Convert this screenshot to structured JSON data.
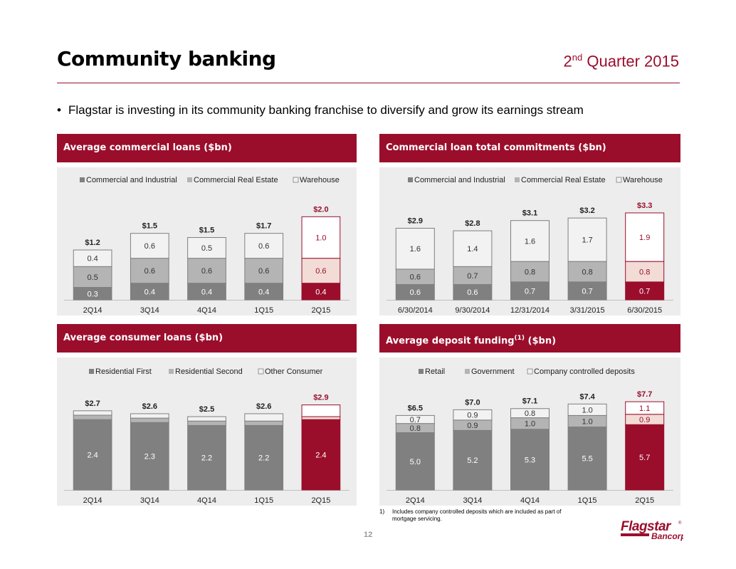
{
  "page": {
    "title": "Community banking",
    "quarter": {
      "ordinal": "2",
      "suffix": "nd",
      "rest": " Quarter 2015"
    },
    "bullet": "Flagstar is investing in its community banking franchise to diversify and grow its earnings stream",
    "page_number": "12",
    "footnote_number": "1)",
    "footnote_text": "Includes company controlled deposits which are included as part of mortgage servicing.",
    "logo": {
      "name": "Flagstar",
      "registered": "®",
      "sub": "Bancorp"
    }
  },
  "colors": {
    "brand": "#9a0e2c",
    "dark_gray": "#808080",
    "mid_gray": "#b4b4b4",
    "light_fill": "#f2f2f2",
    "highlight_mid": "#f2dcd5",
    "highlight_light": "#ffffff",
    "panel_bg": "#ededed"
  },
  "chart_data": [
    {
      "id": "commercial-loans",
      "type": "bar",
      "stacked": true,
      "title": "Average commercial loans ($bn)",
      "categories": [
        "2Q14",
        "3Q14",
        "4Q14",
        "1Q15",
        "2Q15"
      ],
      "series": [
        {
          "name": "Commercial and Industrial",
          "values": [
            0.3,
            0.4,
            0.4,
            0.4,
            0.4
          ]
        },
        {
          "name": "Commercial Real Estate",
          "values": [
            0.5,
            0.6,
            0.6,
            0.6,
            0.6
          ]
        },
        {
          "name": "Warehouse",
          "values": [
            0.4,
            0.6,
            0.5,
            0.6,
            1.0
          ]
        }
      ],
      "totals": [
        "$1.2",
        "$1.5",
        "$1.5",
        "$1.7",
        "$2.0"
      ],
      "highlight_index": 4,
      "show_segment_labels": [
        true,
        true,
        true
      ],
      "ylim": [
        0,
        2.4
      ],
      "legend": "top"
    },
    {
      "id": "loan-commitments",
      "type": "bar",
      "stacked": true,
      "title": "Commercial loan total commitments ($bn)",
      "categories": [
        "6/30/2014",
        "9/30/2014",
        "12/31/2014",
        "3/31/2015",
        "6/30/2015"
      ],
      "series": [
        {
          "name": "Commercial and Industrial",
          "values": [
            0.6,
            0.6,
            0.7,
            0.7,
            0.7
          ]
        },
        {
          "name": "Commercial Real Estate",
          "values": [
            0.6,
            0.7,
            0.8,
            0.8,
            0.8
          ]
        },
        {
          "name": "Warehouse",
          "values": [
            1.6,
            1.4,
            1.6,
            1.7,
            1.9
          ]
        }
      ],
      "totals": [
        "$2.9",
        "$2.8",
        "$3.1",
        "$3.2",
        "$3.3"
      ],
      "highlight_index": 4,
      "show_segment_labels": [
        true,
        true,
        true
      ],
      "ylim": [
        0,
        3.9
      ],
      "legend": "top"
    },
    {
      "id": "consumer-loans",
      "type": "bar",
      "stacked": true,
      "title": "Average consumer loans ($bn)",
      "categories": [
        "2Q14",
        "3Q14",
        "4Q14",
        "1Q15",
        "2Q15"
      ],
      "series": [
        {
          "name": "Residential First",
          "values": [
            2.4,
            2.3,
            2.2,
            2.2,
            2.4
          ]
        },
        {
          "name": "Residential Second",
          "values": [
            0.15,
            0.15,
            0.15,
            0.15,
            0.1
          ]
        },
        {
          "name": "Other Consumer",
          "values": [
            0.15,
            0.15,
            0.15,
            0.25,
            0.4
          ]
        }
      ],
      "totals": [
        "$2.7",
        "$2.6",
        "$2.5",
        "$2.6",
        "$2.9"
      ],
      "segment_labels": [
        [
          "2.4",
          "2.3",
          "2.2",
          "2.2",
          "2.4"
        ]
      ],
      "highlight_index": 4,
      "show_segment_labels": [
        true,
        false,
        false
      ],
      "ylim": [
        0,
        3.4
      ],
      "legend": "top"
    },
    {
      "id": "deposit-funding",
      "type": "bar",
      "stacked": true,
      "title": "Average deposit funding",
      "title_sup": "(1)",
      "title_suffix": " ($bn)",
      "categories": [
        "2Q14",
        "3Q14",
        "4Q14",
        "1Q15",
        "2Q15"
      ],
      "series": [
        {
          "name": "Retail",
          "values": [
            5.0,
            5.2,
            5.3,
            5.5,
            5.7
          ]
        },
        {
          "name": "Government",
          "values": [
            0.8,
            0.9,
            1.0,
            1.0,
            0.9
          ]
        },
        {
          "name": "Company controlled deposits",
          "values": [
            0.7,
            0.9,
            0.8,
            1.0,
            1.1
          ]
        }
      ],
      "totals": [
        "$6.5",
        "$7.0",
        "$7.1",
        "$7.4",
        "$7.7"
      ],
      "highlight_index": 4,
      "show_segment_labels": [
        true,
        true,
        true
      ],
      "ylim": [
        0,
        8.7
      ],
      "legend": "top"
    }
  ]
}
